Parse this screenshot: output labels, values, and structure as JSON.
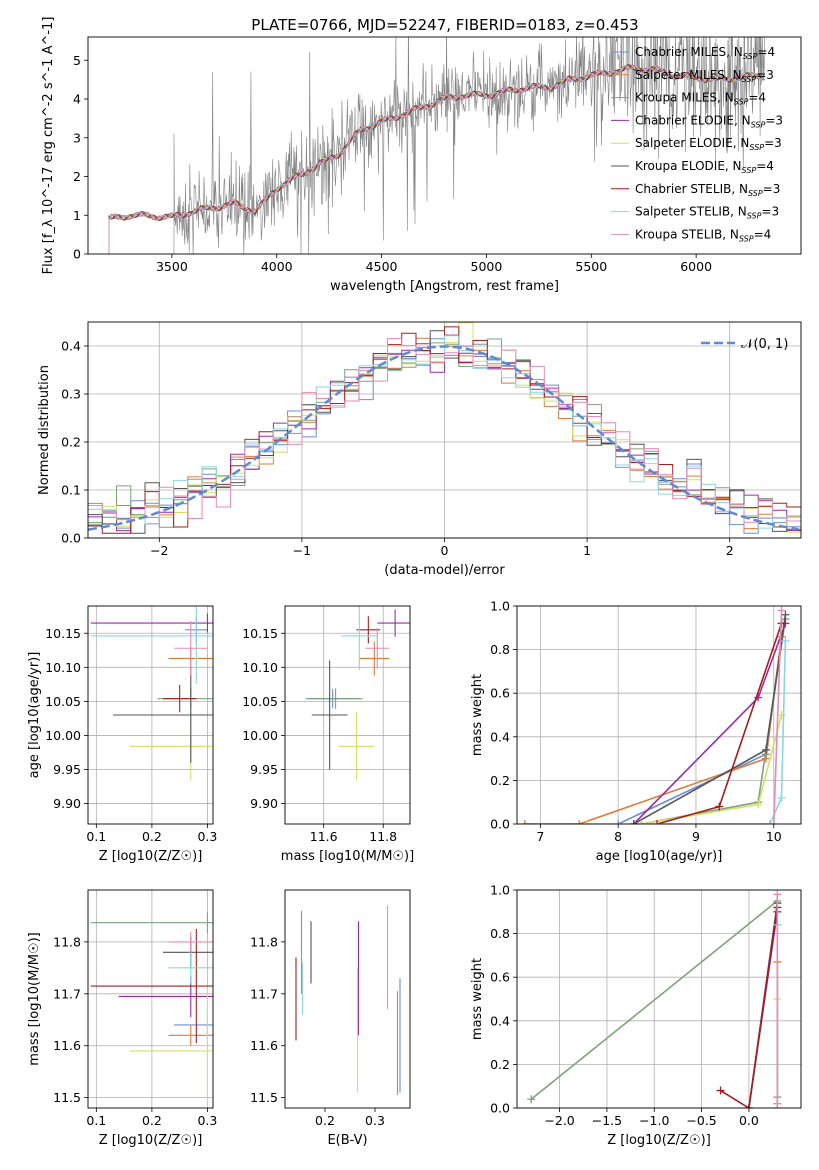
{
  "figure_title": "PLATE=0766, MJD=52247, FIBERID=0183, z=0.453",
  "palette": [
    "#6b8fd6",
    "#e07b3a",
    "#7da37d",
    "#9a2ca8",
    "#d4e060",
    "#555555",
    "#a61d1d",
    "#8bd6e0",
    "#e88ab4"
  ],
  "chart_data": [
    {
      "id": "spectrum",
      "type": "line",
      "title": "PLATE=0766, MJD=52247, FIBERID=0183, z=0.453",
      "xlabel": "wavelength [Angstrom, rest frame]",
      "ylabel": "Flux [f_λ 10^-17 erg cm^-2 s^-1 A^-1]",
      "xlim": [
        3100,
        6500
      ],
      "ylim": [
        0,
        5.6
      ],
      "xticks": [
        3500,
        4000,
        4500,
        5000,
        5500,
        6000
      ],
      "yticks": [
        0,
        1,
        2,
        3,
        4,
        5
      ],
      "grid": false,
      "legend_position": "top-right",
      "legend": [
        "Chabrier MILES, N_SSP=4",
        "Salpeter MILES, N_SSP=3",
        "Kroupa MILES, N_SSP=4",
        "Chabrier ELODIE, N_SSP=3",
        "Salpeter ELODIE, N_SSP=3",
        "Kroupa ELODIE, N_SSP=4",
        "Chabrier STELIB, N_SSP=3",
        "Salpeter STELIB, N_SSP=3",
        "Kroupa STELIB, N_SSP=4"
      ],
      "model_start": 3200,
      "data_start": 3510,
      "model_curve": [
        [
          3200,
          0.9
        ],
        [
          3300,
          1.0
        ],
        [
          3400,
          0.98
        ],
        [
          3500,
          0.95
        ],
        [
          3600,
          1.1
        ],
        [
          3700,
          1.2
        ],
        [
          3800,
          1.3
        ],
        [
          3900,
          1.1
        ],
        [
          4000,
          1.7
        ],
        [
          4100,
          2.0
        ],
        [
          4200,
          2.3
        ],
        [
          4300,
          2.6
        ],
        [
          4400,
          3.2
        ],
        [
          4500,
          3.4
        ],
        [
          4600,
          3.6
        ],
        [
          4700,
          3.8
        ],
        [
          4800,
          4.0
        ],
        [
          4900,
          4.1
        ],
        [
          5000,
          4.1
        ],
        [
          5100,
          4.2
        ],
        [
          5200,
          4.3
        ],
        [
          5300,
          4.3
        ],
        [
          5400,
          4.5
        ],
        [
          5500,
          4.6
        ],
        [
          5600,
          4.7
        ],
        [
          5700,
          4.8
        ],
        [
          5800,
          4.75
        ],
        [
          5900,
          4.6
        ],
        [
          6000,
          4.55
        ],
        [
          6100,
          4.5
        ],
        [
          6200,
          4.55
        ],
        [
          6300,
          4.6
        ]
      ]
    },
    {
      "id": "residuals",
      "type": "line",
      "xlabel": "(data-model)/error",
      "ylabel": "Normed distribution",
      "xlim": [
        -2.5,
        2.5
      ],
      "ylim": [
        0,
        0.45
      ],
      "xticks": [
        -2,
        -1,
        0,
        1,
        2
      ],
      "yticks": [
        0.0,
        0.1,
        0.2,
        0.3,
        0.4
      ],
      "grid": true,
      "legend_position": "top-right",
      "reference_curve_label": "𝒩(0, 1)",
      "bin_width": 0.1
    },
    {
      "id": "age_vs_Z",
      "type": "scatter",
      "xlabel": "Z [log10(Z/Z☉)]",
      "ylabel": "age  [log10(age/yr)]",
      "xlim": [
        0.085,
        0.31
      ],
      "ylim": [
        9.87,
        10.19
      ],
      "xticks": [
        0.1,
        0.2,
        0.3
      ],
      "yticks": [
        9.9,
        9.95,
        10.0,
        10.05,
        10.1,
        10.15
      ],
      "grid": true,
      "points": [
        {
          "x": 0.28,
          "y": 10.155,
          "xerr": 0.02,
          "yerr": 0.02
        },
        {
          "x": 0.27,
          "y": 10.113,
          "xerr": 0.04,
          "yerr": 0.015
        },
        {
          "x": 0.27,
          "y": 10.054,
          "xerr": 0.06,
          "yerr": 0.015
        },
        {
          "x": 0.3,
          "y": 10.165,
          "xerr": 0.21,
          "yerr": 0.014
        },
        {
          "x": 0.27,
          "y": 9.984,
          "xerr": 0.11,
          "yerr": 0.05
        },
        {
          "x": 0.27,
          "y": 10.03,
          "xerr": 0.14,
          "yerr": 0.07
        },
        {
          "x": 0.25,
          "y": 10.054,
          "xerr": 0.03,
          "yerr": 0.02
        },
        {
          "x": 0.28,
          "y": 10.146,
          "xerr": 0.19,
          "yerr": 0.07
        },
        {
          "x": 0.27,
          "y": 10.128,
          "xerr": 0.03,
          "yerr": 0.04
        }
      ]
    },
    {
      "id": "age_vs_mass",
      "type": "scatter",
      "xlabel": "mass [log10(M/M☉)]",
      "ylabel": "",
      "xlim": [
        11.47,
        11.89
      ],
      "ylim": [
        9.87,
        10.19
      ],
      "xticks": [
        11.6,
        11.8
      ],
      "yticks": [
        9.9,
        9.95,
        10.0,
        10.05,
        10.1,
        10.15
      ],
      "grid": true,
      "points": [
        {
          "x": 11.63,
          "y": 10.054,
          "xerr": 0.09,
          "yerr": 0.014
        },
        {
          "x": 11.77,
          "y": 10.113,
          "xerr": 0.05,
          "yerr": 0.025
        },
        {
          "x": 11.64,
          "y": 10.054,
          "xerr": 0.09,
          "yerr": 0.015
        },
        {
          "x": 11.84,
          "y": 10.165,
          "xerr": 0.06,
          "yerr": 0.02
        },
        {
          "x": 11.71,
          "y": 9.984,
          "xerr": 0.06,
          "yerr": 0.05
        },
        {
          "x": 11.62,
          "y": 10.03,
          "xerr": 0.06,
          "yerr": 0.08
        },
        {
          "x": 11.75,
          "y": 10.155,
          "xerr": 0.04,
          "yerr": 0.02
        },
        {
          "x": 11.72,
          "y": 10.146,
          "xerr": 0.06,
          "yerr": 0.05
        },
        {
          "x": 11.78,
          "y": 10.128,
          "xerr": 0.04,
          "yerr": 0.03
        }
      ]
    },
    {
      "id": "massweight_vs_age",
      "type": "line",
      "xlabel": "age  [log10(age/yr)]",
      "ylabel": "mass weight",
      "xlim": [
        6.7,
        10.35
      ],
      "ylim": [
        0,
        1.0
      ],
      "xticks": [
        7,
        8,
        9,
        10
      ],
      "yticks": [
        0.0,
        0.2,
        0.4,
        0.6,
        0.8,
        1.0
      ],
      "grid": true,
      "series": [
        {
          "points": [
            [
              8.0,
              0.0
            ],
            [
              9.9,
              0.32
            ],
            [
              10.1,
              0.84
            ]
          ]
        },
        {
          "points": [
            [
              6.8,
              0.0
            ],
            [
              7.5,
              0.0
            ],
            [
              9.9,
              0.3
            ],
            [
              10.1,
              0.86
            ]
          ]
        },
        {
          "points": [
            [
              8.3,
              0.0
            ],
            [
              9.8,
              0.1
            ],
            [
              10.15,
              0.94
            ]
          ]
        },
        {
          "points": [
            [
              8.2,
              0.0
            ],
            [
              9.8,
              0.58
            ],
            [
              10.15,
              0.92
            ]
          ]
        },
        {
          "points": [
            [
              7.6,
              0.0
            ],
            [
              8.3,
              0.0
            ],
            [
              9.8,
              0.09
            ],
            [
              10.1,
              0.5
            ]
          ]
        },
        {
          "points": [
            [
              8.2,
              0.0
            ],
            [
              9.9,
              0.34
            ],
            [
              10.15,
              0.96
            ]
          ]
        },
        {
          "points": [
            [
              8.5,
              0.0
            ],
            [
              9.3,
              0.08
            ],
            [
              10.1,
              0.92
            ]
          ]
        },
        {
          "points": [
            [
              8.3,
              0.0
            ],
            [
              9.95,
              0.0
            ],
            [
              10.1,
              0.12
            ],
            [
              10.15,
              0.84
            ]
          ]
        },
        {
          "points": [
            [
              10.0,
              0.0
            ],
            [
              10.1,
              0.98
            ]
          ]
        }
      ]
    },
    {
      "id": "mass_vs_Z",
      "type": "scatter",
      "xlabel": "Z [log10(Z/Z☉)]",
      "ylabel": "mass [log10(M/M☉)]",
      "xlim": [
        0.085,
        0.31
      ],
      "ylim": [
        11.48,
        11.9
      ],
      "xticks": [
        0.1,
        0.2,
        0.3
      ],
      "yticks": [
        11.5,
        11.6,
        11.7,
        11.8
      ],
      "grid": true,
      "points": [
        {
          "x": 0.3,
          "y": 11.64,
          "xerr": 0.06,
          "yerr": 0.03
        },
        {
          "x": 0.27,
          "y": 11.62,
          "xerr": 0.04,
          "yerr": 0.02
        },
        {
          "x": 0.3,
          "y": 11.837,
          "xerr": 0.21,
          "yerr": 0.02
        },
        {
          "x": 0.27,
          "y": 11.695,
          "xerr": 0.13,
          "yerr": 0.04
        },
        {
          "x": 0.3,
          "y": 11.59,
          "xerr": 0.14,
          "yerr": 0.12
        },
        {
          "x": 0.27,
          "y": 11.78,
          "xerr": 0.05,
          "yerr": 0.03
        },
        {
          "x": 0.28,
          "y": 11.715,
          "xerr": 0.19,
          "yerr": 0.11
        },
        {
          "x": 0.27,
          "y": 11.75,
          "xerr": 0.04,
          "yerr": 0.03
        },
        {
          "x": 0.27,
          "y": 11.8,
          "xerr": 0.04,
          "yerr": 0.02
        }
      ]
    },
    {
      "id": "mass_vs_ebv",
      "type": "scatter",
      "xlabel": "E(B-V)",
      "ylabel": "",
      "xlim": [
        0.12,
        0.37
      ],
      "ylim": [
        11.48,
        11.9
      ],
      "xticks": [
        0.2,
        0.3
      ],
      "yticks": [
        11.5,
        11.6,
        11.7,
        11.8
      ],
      "grid": false,
      "points": [
        {
          "x": 0.35,
          "y": 11.62,
          "yerr": 0.11
        },
        {
          "x": 0.345,
          "y": 11.605,
          "yerr": 0.1
        },
        {
          "x": 0.153,
          "y": 11.78,
          "yerr": 0.08
        },
        {
          "x": 0.267,
          "y": 11.73,
          "yerr": 0.11
        },
        {
          "x": 0.265,
          "y": 11.63,
          "yerr": 0.12
        },
        {
          "x": 0.172,
          "y": 11.78,
          "yerr": 0.06
        },
        {
          "x": 0.142,
          "y": 11.69,
          "yerr": 0.08
        },
        {
          "x": 0.155,
          "y": 11.71,
          "yerr": 0.05
        },
        {
          "x": 0.325,
          "y": 11.77,
          "yerr": 0.1
        }
      ]
    },
    {
      "id": "massweight_vs_Z",
      "type": "line",
      "xlabel": "Z [log10(Z/Z☉)]",
      "ylabel": "mass weight",
      "xlim": [
        -2.45,
        0.55
      ],
      "ylim": [
        0,
        1.0
      ],
      "xticks": [
        -2.0,
        -1.5,
        -1.0,
        -0.5,
        0.0
      ],
      "yticks": [
        0.0,
        0.2,
        0.4,
        0.6,
        0.8,
        1.0
      ],
      "grid": true,
      "series": [
        {
          "points": [
            [
              0.3,
              0.05
            ],
            [
              0.3,
              0.84
            ]
          ]
        },
        {
          "points": [
            [
              0.3,
              0.02
            ],
            [
              0.3,
              0.67
            ]
          ]
        },
        {
          "points": [
            [
              -2.3,
              0.04
            ],
            [
              0.3,
              0.95
            ]
          ]
        },
        {
          "points": [
            [
              0.0,
              0.0
            ],
            [
              0.3,
              0.9
            ]
          ]
        },
        {
          "points": [
            [
              0.3,
              0.02
            ],
            [
              0.3,
              0.5
            ]
          ]
        },
        {
          "points": [
            [
              0.0,
              0.0
            ],
            [
              0.3,
              0.94
            ]
          ]
        },
        {
          "points": [
            [
              -0.3,
              0.08
            ],
            [
              0.0,
              0.0
            ],
            [
              0.3,
              0.92
            ]
          ]
        },
        {
          "points": [
            [
              0.3,
              0.0
            ],
            [
              0.3,
              0.84
            ]
          ]
        },
        {
          "points": [
            [
              0.3,
              0.02
            ],
            [
              0.3,
              0.98
            ]
          ]
        }
      ]
    }
  ]
}
